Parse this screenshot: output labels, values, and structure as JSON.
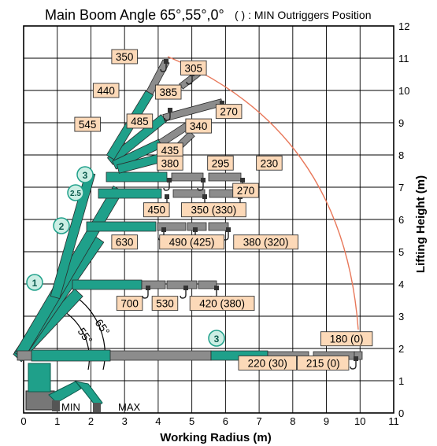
{
  "title": "Main Boom Angle 65°,55°,0°",
  "subtitle": "( ) : MIN Outriggers Position",
  "xlabel": "Working Radius (m)",
  "ylabel": "Lifting Height (m)",
  "colors": {
    "boom": "#1fa08a",
    "boom_dark": "#0c5c4e",
    "jib": "#8c8c8c",
    "label_fill": "#fcd9b8",
    "label_stroke": "#333333",
    "envelope": "#e8785a",
    "badge_fill": "#cbeee4",
    "grid": "#000000"
  },
  "chart_data": {
    "type": "diagram",
    "xlim": [
      0,
      11
    ],
    "ylim": [
      0,
      12
    ],
    "x_ticks": [
      "0",
      "1",
      "2",
      "3",
      "4",
      "5",
      "6",
      "7",
      "8",
      "9",
      "10",
      "11"
    ],
    "y_ticks": [
      "0",
      "1",
      "2",
      "3",
      "4",
      "5",
      "6",
      "7",
      "8",
      "9",
      "10",
      "11",
      "12"
    ],
    "grid": true,
    "angle_labels": [
      "65°",
      "55°"
    ],
    "outrigger_labels": [
      "MIN",
      "MAX"
    ],
    "boom_sections": [
      "1",
      "2",
      "2.5",
      "3",
      "3"
    ],
    "capacities": [
      {
        "text": "350",
        "x": 3.0,
        "y": 11.05
      },
      {
        "text": "305",
        "x": 5.05,
        "y": 10.7
      },
      {
        "text": "440",
        "x": 2.45,
        "y": 10.0
      },
      {
        "text": "385",
        "x": 4.3,
        "y": 9.95
      },
      {
        "text": "270",
        "x": 6.1,
        "y": 9.35
      },
      {
        "text": "545",
        "x": 1.9,
        "y": 8.95
      },
      {
        "text": "485",
        "x": 3.45,
        "y": 9.05
      },
      {
        "text": "340",
        "x": 5.2,
        "y": 8.9
      },
      {
        "text": "435",
        "x": 4.35,
        "y": 8.15
      },
      {
        "text": "380",
        "x": 4.35,
        "y": 7.75
      },
      {
        "text": "295",
        "x": 5.85,
        "y": 7.75
      },
      {
        "text": "230",
        "x": 7.3,
        "y": 7.75
      },
      {
        "text": "270",
        "x": 6.6,
        "y": 6.9
      },
      {
        "text": "450",
        "x": 3.95,
        "y": 6.3
      },
      {
        "text": "350 (330)",
        "x": 5.65,
        "y": 6.3
      },
      {
        "text": "630",
        "x": 3.0,
        "y": 5.3
      },
      {
        "text": "490 (425)",
        "x": 5.0,
        "y": 5.3
      },
      {
        "text": "380 (320)",
        "x": 7.2,
        "y": 5.3
      },
      {
        "text": "700",
        "x": 3.15,
        "y": 3.4
      },
      {
        "text": "530",
        "x": 4.2,
        "y": 3.4
      },
      {
        "text": "420 (380)",
        "x": 5.9,
        "y": 3.4
      },
      {
        "text": "180 (0)",
        "x": 9.6,
        "y": 2.3
      },
      {
        "text": "220 (30)",
        "x": 7.25,
        "y": 1.55
      },
      {
        "text": "215 (0)",
        "x": 8.9,
        "y": 1.55
      }
    ]
  }
}
